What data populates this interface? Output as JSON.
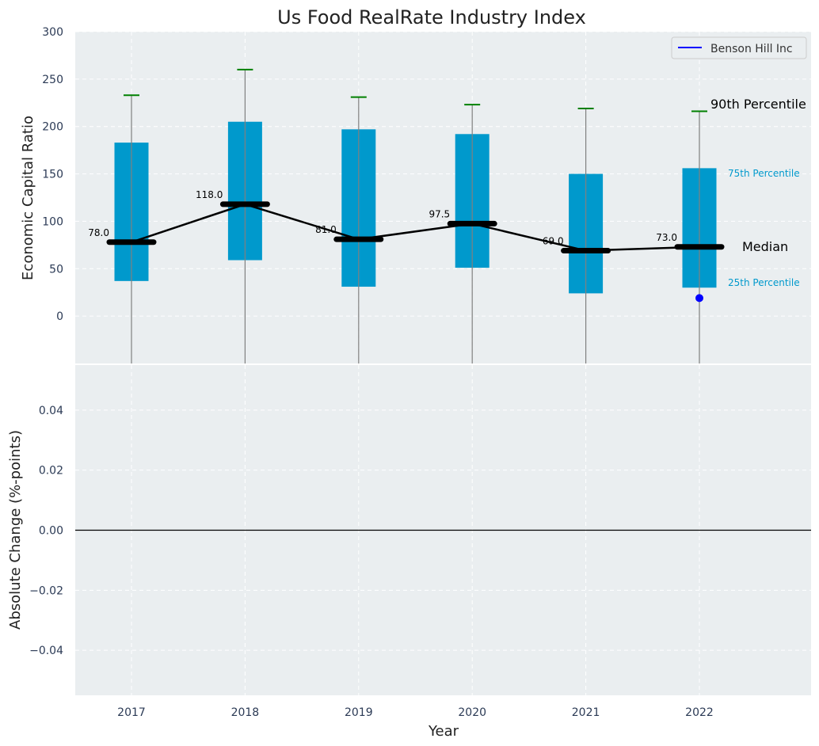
{
  "chart_data": {
    "title": "Us Food RealRate Industry Index",
    "xlabel": "Year",
    "top_panel": {
      "type": "box",
      "ylabel": "Economic Capital Ratio",
      "ylim": [
        -50,
        300
      ],
      "yticks": [
        "0",
        "50",
        "100",
        "150",
        "200",
        "250",
        "300"
      ],
      "categories": [
        "2017",
        "2018",
        "2019",
        "2020",
        "2021",
        "2022"
      ],
      "p25": [
        37,
        59,
        31,
        51,
        24,
        30
      ],
      "p75": [
        183,
        205,
        197,
        192,
        150,
        156
      ],
      "p90": [
        233,
        260,
        231,
        223,
        219,
        216
      ],
      "median": [
        78.0,
        118.0,
        81.0,
        97.5,
        69.0,
        73.0
      ],
      "median_labels": [
        "78.0",
        "118.0",
        "81.0",
        "97.5",
        "69.0",
        "73.0"
      ],
      "company": {
        "name": "Benson Hill Inc",
        "color": "#0000ff",
        "points": [
          {
            "x": "2022",
            "y": 19
          }
        ]
      },
      "legend": {
        "position": "top-right",
        "label": "Benson Hill Inc"
      },
      "annotations": {
        "p90": "90th Percentile",
        "p75": "75th Percentile",
        "median": "Median",
        "p25": "25th Percentile"
      },
      "grid": true
    },
    "bottom_panel": {
      "type": "line",
      "ylabel": "Absolute Change (%-points)",
      "ylim": [
        -0.055,
        0.055
      ],
      "yticks": [
        "−0.04",
        "−0.02",
        "0.00",
        "0.02",
        "0.04"
      ],
      "series": [],
      "zero_line": true,
      "grid": true
    },
    "colors": {
      "box": "#0099cc",
      "whisker": "#808080",
      "cap": "#008000",
      "median": "#000000",
      "company": "#0000ff",
      "background": "#eaeef0"
    }
  }
}
